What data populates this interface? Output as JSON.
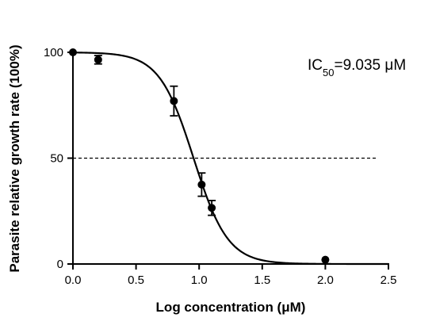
{
  "chart_data": {
    "type": "scatter",
    "xlabel": "Log concentration (μM)",
    "ylabel": "Parasite relative growth rate (100%)",
    "xlim": [
      0,
      2.5
    ],
    "ylim": [
      0,
      100
    ],
    "x_ticks": [
      "0.0",
      "0.5",
      "1.0",
      "1.5",
      "2.0",
      "2.5"
    ],
    "y_ticks": [
      "0",
      "50",
      "100"
    ],
    "grid": false,
    "points": [
      {
        "x": 0.0,
        "y": 100,
        "err": 0
      },
      {
        "x": 0.2,
        "y": 96.5,
        "err": 2
      },
      {
        "x": 0.8,
        "y": 77,
        "err": 7
      },
      {
        "x": 1.02,
        "y": 37.5,
        "err": 5.5
      },
      {
        "x": 1.1,
        "y": 26.5,
        "err": 3.5
      },
      {
        "x": 2.0,
        "y": 2,
        "err": 0
      }
    ],
    "fit_curve": {
      "model": "sigmoid",
      "top": 100,
      "bottom": 0,
      "log_ic50": 0.956,
      "hill_slope": -3.2,
      "x_range": [
        0,
        2.5
      ]
    },
    "reference_line": {
      "y": 50,
      "style": "dashed",
      "x_range": [
        0,
        2.4
      ]
    },
    "annotation": {
      "prefix": "IC",
      "subscript": "50",
      "suffix": "=9.035 μM"
    }
  }
}
